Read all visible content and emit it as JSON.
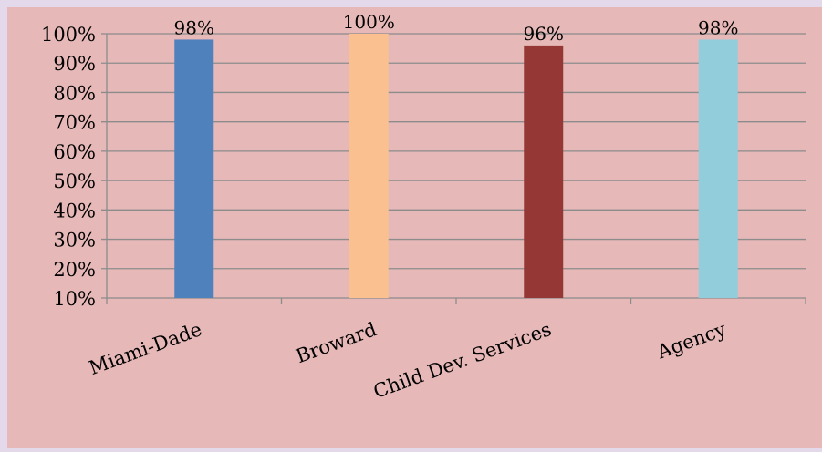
{
  "chart_data": {
    "type": "bar",
    "categories": [
      "Miami-Dade",
      "Broward",
      "Child Dev. Services",
      "Agency"
    ],
    "values": [
      98,
      100,
      96,
      98
    ],
    "value_labels": [
      "98%",
      "100%",
      "96%",
      "98%"
    ],
    "colors": [
      "#4f81bd",
      "#fac090",
      "#953735",
      "#92cddc"
    ],
    "ylim": [
      10,
      100
    ],
    "y_ticks": [
      10,
      20,
      30,
      40,
      50,
      60,
      70,
      80,
      90,
      100
    ],
    "y_tick_labels": [
      "10%",
      "20%",
      "30%",
      "40%",
      "50%",
      "60%",
      "70%",
      "80%",
      "90%",
      "100%"
    ],
    "grid": true,
    "legend": "none",
    "title": "",
    "xlabel": "",
    "ylabel": ""
  },
  "colors": {
    "page_background": "#e3d9ea",
    "chart_background": "#e6b8b7",
    "gridline": "#8c8c8c"
  }
}
